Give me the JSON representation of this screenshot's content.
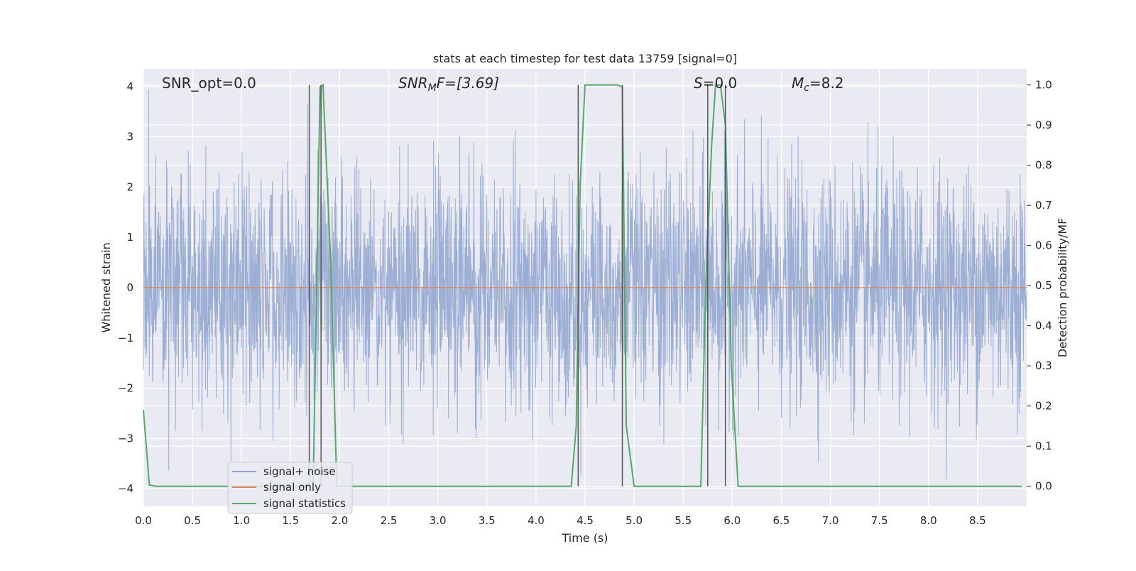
{
  "chart_data": {
    "type": "line",
    "title": "stats at each timestep for test data 13759 [signal=0]",
    "xlabel": "Time (s)",
    "ylabel_left": "Whitened strain",
    "ylabel_right": "Detection probability/MF",
    "xlim": [
      0.0,
      9.0
    ],
    "ylim_left": [
      -4.35,
      4.35
    ],
    "ylim_right": [
      -0.05,
      1.04
    ],
    "x_ticks": [
      0.0,
      0.5,
      1.0,
      1.5,
      2.0,
      2.5,
      3.0,
      3.5,
      4.0,
      4.5,
      5.0,
      5.5,
      6.0,
      6.5,
      7.0,
      7.5,
      8.0,
      8.5
    ],
    "x_tick_labels": [
      "0.0",
      "0.5",
      "1.0",
      "1.5",
      "2.0",
      "2.5",
      "3.0",
      "3.5",
      "4.0",
      "4.5",
      "5.0",
      "5.5",
      "6.0",
      "6.5",
      "7.0",
      "7.5",
      "8.0",
      "8.5"
    ],
    "y_ticks_left": [
      4,
      3,
      2,
      1,
      0,
      -1,
      -2,
      -3,
      -4
    ],
    "y_tick_labels_left": [
      "4",
      "3",
      "2",
      "1",
      "0",
      "−1",
      "−2",
      "−3",
      "−4"
    ],
    "y_ticks_right": [
      1.0,
      0.9,
      0.8,
      0.7,
      0.6,
      0.5,
      0.4,
      0.3,
      0.2,
      0.1,
      0.0
    ],
    "y_tick_labels_right": [
      "1.0",
      "0.9",
      "0.8",
      "0.7",
      "0.6",
      "0.5",
      "0.4",
      "0.3",
      "0.2",
      "0.1",
      "0.0"
    ],
    "grid": true,
    "legend_placement": "lower-left",
    "annotations": {
      "snr_opt": "SNR_opt=0.0",
      "snr_mf_main": "SNR",
      "snr_mf_sub": "M",
      "snr_mf_rest": "F=[3.69]",
      "s_main": "S",
      "s_rest": "=0.0",
      "mc_main": "M",
      "mc_sub": "c",
      "mc_rest": "=8.2"
    },
    "series": [
      {
        "name": "signal+ noise",
        "color": "#8ea3cf",
        "axis": "left",
        "description_values": "whitened noise, approx. standard normal, peaks up to 4.0 and down to -3.9"
      },
      {
        "name": "signal only",
        "color": "#dd8452",
        "axis": "left",
        "values_constant": 0.0
      },
      {
        "name": "signal statistics",
        "color": "#55a868",
        "axis": "right",
        "x": [
          0.0,
          0.06,
          0.13,
          1.68,
          1.73,
          1.8,
          1.83,
          1.91,
          1.97,
          4.36,
          4.41,
          4.45,
          4.5,
          4.83,
          4.88,
          4.92,
          5.0,
          5.68,
          5.73,
          5.79,
          5.83,
          5.88,
          5.93,
          5.99,
          6.06,
          8.95
        ],
        "y": [
          0.19,
          0.003,
          0.0,
          0.0,
          0.0,
          0.995,
          1.0,
          0.55,
          0.0,
          0.0,
          0.15,
          0.75,
          1.0,
          1.0,
          0.995,
          0.15,
          0.0,
          0.0,
          0.5,
          0.85,
          1.0,
          1.0,
          0.9,
          0.3,
          0.0,
          0.0
        ]
      }
    ],
    "vertical_markers": [
      {
        "x": 1.69,
        "y_top": 1.0
      },
      {
        "x": 1.81,
        "y_top": 1.0
      },
      {
        "x": 4.43,
        "y_top": 1.0
      },
      {
        "x": 4.88,
        "y_top": 1.0
      },
      {
        "x": 5.75,
        "y_top": 1.0
      },
      {
        "x": 5.93,
        "y_top": 1.0
      }
    ],
    "colors": {
      "axes_bg": "#eaeaf2",
      "grid": "#ffffff",
      "marker": "#555555"
    }
  }
}
